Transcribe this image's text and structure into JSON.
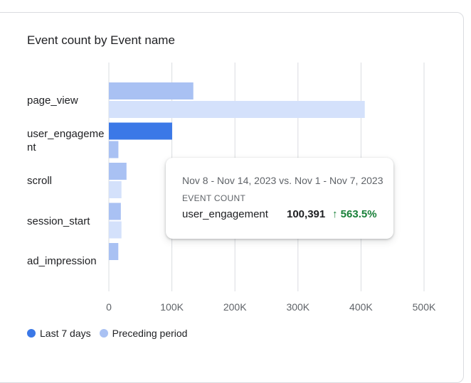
{
  "colors": {
    "last7": "#3b78e7",
    "preceding": "#a9c1f3",
    "preceding_light": "#d4e1fb",
    "positive": "#188038"
  },
  "chart_data": {
    "type": "bar",
    "orientation": "horizontal",
    "title": "Event count by Event name",
    "categories": [
      "page_view",
      "user_engagement",
      "scroll",
      "session_start",
      "ad_impression"
    ],
    "series": [
      {
        "name": "Last 7 days",
        "values": [
          134000,
          100391,
          28000,
          19000,
          15000
        ]
      },
      {
        "name": "Preceding period",
        "values": [
          406000,
          15130,
          20000,
          20000,
          0
        ]
      }
    ],
    "xlim": [
      0,
      500000
    ],
    "xticks": [
      0,
      100000,
      200000,
      300000,
      400000,
      500000
    ],
    "xtick_labels": [
      "0",
      "100K",
      "200K",
      "300K",
      "400K",
      "500K"
    ],
    "grid": true,
    "legend_position": "bottom-left"
  },
  "tooltip": {
    "date_range": "Nov 8 - Nov 14, 2023 vs. Nov 1 - Nov 7, 2023",
    "metric": "EVENT COUNT",
    "event_name": "user_engagement",
    "value": "100,391",
    "change": "563.5%",
    "change_icon": "arrow-up-icon"
  }
}
